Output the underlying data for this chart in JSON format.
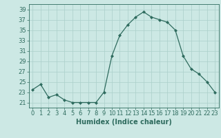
{
  "x": [
    0,
    1,
    2,
    3,
    4,
    5,
    6,
    7,
    8,
    9,
    10,
    11,
    12,
    13,
    14,
    15,
    16,
    17,
    18,
    19,
    20,
    21,
    22,
    23
  ],
  "y": [
    23.5,
    24.5,
    22.0,
    22.5,
    21.5,
    21.0,
    21.0,
    21.0,
    21.0,
    23.0,
    30.0,
    34.0,
    36.0,
    37.5,
    38.5,
    37.5,
    37.0,
    36.5,
    35.0,
    30.0,
    27.5,
    26.5,
    25.0,
    23.0
  ],
  "line_color": "#2e6b5e",
  "marker": "D",
  "marker_size": 2.0,
  "bg_color": "#cce8e4",
  "grid_color": "#aacfca",
  "xlabel": "Humidex (Indice chaleur)",
  "ylim": [
    20,
    40
  ],
  "xlim": [
    -0.5,
    23.5
  ],
  "yticks": [
    21,
    23,
    25,
    27,
    29,
    31,
    33,
    35,
    37,
    39
  ],
  "xticks": [
    0,
    1,
    2,
    3,
    4,
    5,
    6,
    7,
    8,
    9,
    10,
    11,
    12,
    13,
    14,
    15,
    16,
    17,
    18,
    19,
    20,
    21,
    22,
    23
  ],
  "font_size": 6,
  "label_font_size": 7
}
